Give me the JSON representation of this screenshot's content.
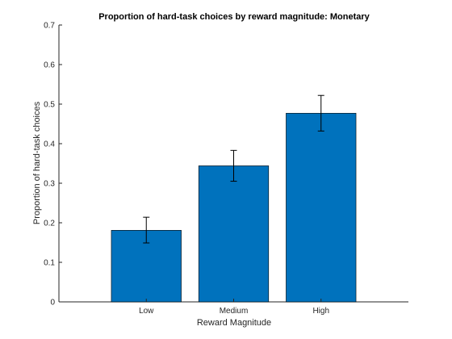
{
  "chart_data": {
    "type": "bar",
    "title": "Proportion of hard-task choices by reward magnitude: Monetary",
    "xlabel": "Reward Magnitude",
    "ylabel": "Proportion of hard-task choices",
    "categories": [
      "Low",
      "Medium",
      "High"
    ],
    "values": [
      0.181,
      0.344,
      0.477
    ],
    "error_low": [
      0.149,
      0.305,
      0.432
    ],
    "error_high": [
      0.214,
      0.383,
      0.522
    ],
    "ylim": [
      0,
      0.7
    ],
    "yticks": [
      "0",
      "0.1",
      "0.2",
      "0.3",
      "0.4",
      "0.5",
      "0.6",
      "0.7"
    ],
    "xlim": [
      0,
      4
    ],
    "grid": false,
    "bar_color": "#0072BD",
    "axis_color": "#262626"
  }
}
